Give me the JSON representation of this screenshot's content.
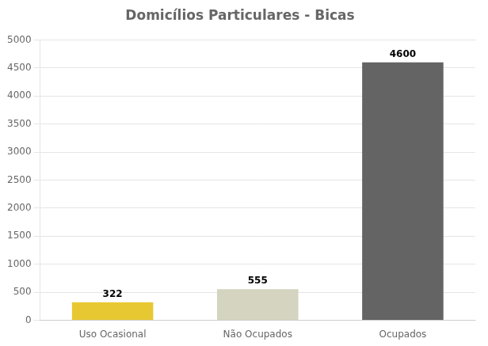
{
  "chart_data": {
    "type": "bar",
    "title": "Domicílios Particulares - Bicas",
    "categories": [
      "Uso Ocasional",
      "Não Ocupados",
      "Ocupados"
    ],
    "values": [
      322,
      555,
      4600
    ],
    "colors": [
      "#E8C832",
      "#D4D4C0",
      "#646464"
    ],
    "ylim": [
      0,
      5000
    ],
    "yticks": [
      0,
      500,
      1000,
      1500,
      2000,
      2500,
      3000,
      3500,
      4000,
      4500,
      5000
    ],
    "grid": true,
    "data_labels": true
  }
}
